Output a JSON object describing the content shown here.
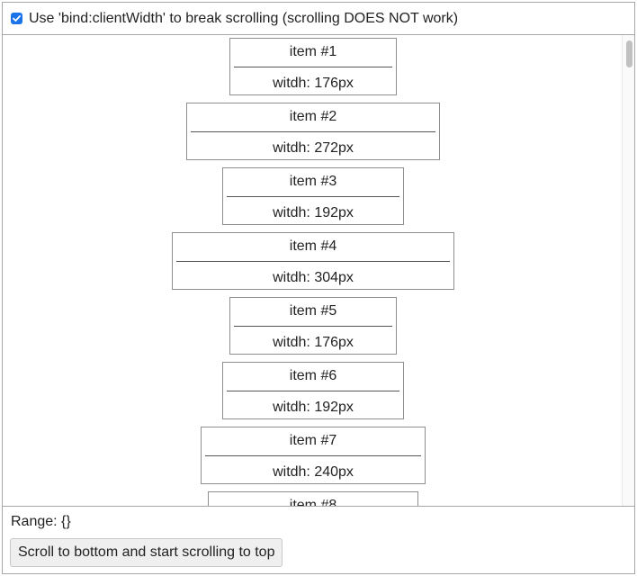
{
  "header": {
    "checkbox_checked": true,
    "checkbox_label": "Use 'bind:clientWidth' to break scrolling (scrolling DOES NOT work)"
  },
  "list": {
    "items": [
      {
        "label": "item #1",
        "width_text": "witdh: 176px"
      },
      {
        "label": "item #2",
        "width_text": "witdh: 272px"
      },
      {
        "label": "item #3",
        "width_text": "witdh: 192px"
      },
      {
        "label": "item #4",
        "width_text": "witdh: 304px"
      },
      {
        "label": "item #5",
        "width_text": "witdh: 176px"
      },
      {
        "label": "item #6",
        "width_text": "witdh: 192px"
      },
      {
        "label": "item #7",
        "width_text": "witdh: 240px"
      },
      {
        "label": "item #8",
        "width_text": ""
      }
    ]
  },
  "footer": {
    "range_text": "Range: {}",
    "scroll_button_label": "Scroll to bottom and start scrolling to top"
  },
  "colors": {
    "accent": "#1a73e8",
    "border": "#a8a8a8"
  }
}
